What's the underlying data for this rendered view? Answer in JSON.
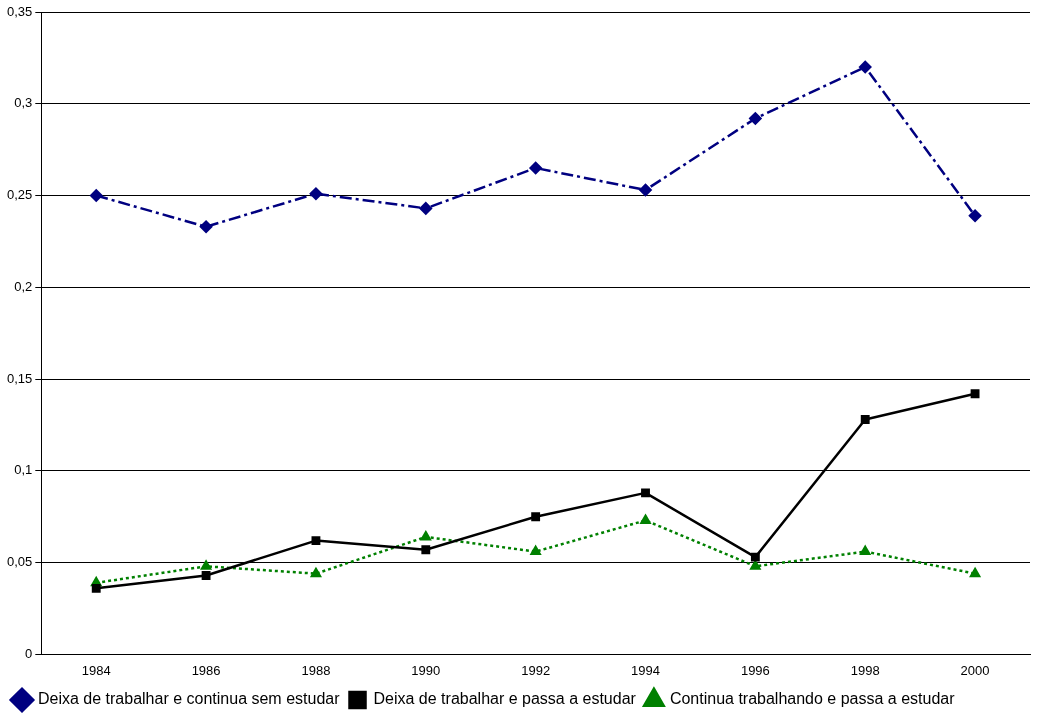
{
  "chart_data": {
    "type": "line",
    "categories": [
      "1984",
      "1986",
      "1988",
      "1990",
      "1992",
      "1994",
      "1996",
      "1998",
      "2000"
    ],
    "series": [
      {
        "name": "Deixa de trabalhar e continua sem estudar",
        "color": "#000080",
        "marker": "diamond",
        "line_style": "dashed",
        "values": [
          0.25,
          0.233,
          0.251,
          0.243,
          0.265,
          0.253,
          0.292,
          0.32,
          0.239
        ]
      },
      {
        "name": "Deixa de trabalhar e passa a estudar",
        "color": "#000000",
        "marker": "square",
        "line_style": "solid",
        "values": [
          0.036,
          0.043,
          0.062,
          0.057,
          0.075,
          0.088,
          0.053,
          0.128,
          0.142
        ]
      },
      {
        "name": "Continua trabalhando e passa a estudar",
        "color": "#008000",
        "marker": "triangle",
        "line_style": "dotted",
        "values": [
          0.039,
          0.048,
          0.044,
          0.064,
          0.056,
          0.073,
          0.048,
          0.056,
          0.044
        ]
      }
    ],
    "ylim": [
      0,
      0.35
    ],
    "yticks": [
      {
        "value": 0,
        "label": "0"
      },
      {
        "value": 0.05,
        "label": "0,05"
      },
      {
        "value": 0.1,
        "label": "0,1"
      },
      {
        "value": 0.15,
        "label": "0,15"
      },
      {
        "value": 0.2,
        "label": "0,2"
      },
      {
        "value": 0.25,
        "label": "0,25"
      },
      {
        "value": 0.3,
        "label": "0,3"
      },
      {
        "value": 0.35,
        "label": "0,35"
      }
    ],
    "grid": "y",
    "legend": "bottom"
  }
}
